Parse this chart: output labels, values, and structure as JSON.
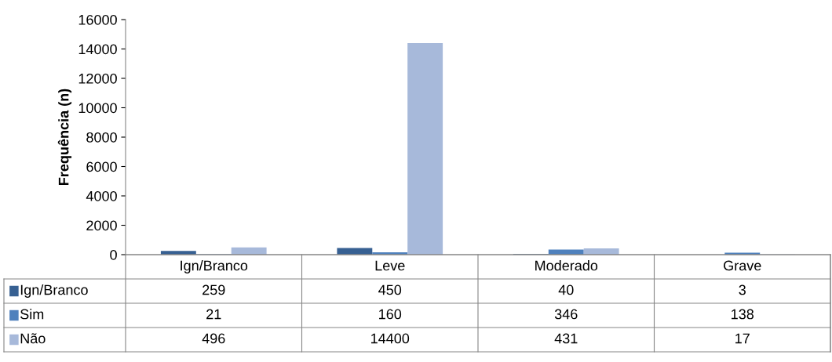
{
  "chart_data": {
    "type": "bar",
    "ylabel": "Frequência (n)",
    "categories": [
      "Ign/Branco",
      "Leve",
      "Moderado",
      "Grave"
    ],
    "series": [
      {
        "name": "Ign/Branco",
        "color": "#376092",
        "values": [
          259,
          450,
          40,
          3
        ]
      },
      {
        "name": "Sim",
        "color": "#4f81bd",
        "values": [
          21,
          160,
          346,
          138
        ]
      },
      {
        "name": "Não",
        "color": "#a7b9da",
        "values": [
          496,
          14400,
          431,
          17
        ]
      }
    ],
    "ylim": [
      0,
      16000
    ],
    "yticks": [
      0,
      2000,
      4000,
      6000,
      8000,
      10000,
      12000,
      14000,
      16000
    ],
    "grid": false,
    "legend": "bottom",
    "data_labels": true
  }
}
